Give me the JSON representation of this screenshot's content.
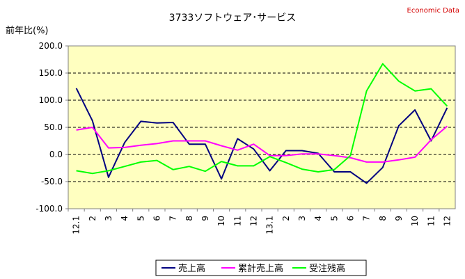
{
  "header": {
    "title": "3733ソフトウェア･サービス",
    "source": "Economic Data"
  },
  "chart_data": {
    "type": "line",
    "title": "3733ソフトウェア･サービス",
    "ylabel": "前年比(%)",
    "xlabel": "",
    "ylim": [
      -100,
      200
    ],
    "yticks": [
      "200.0",
      "150.0",
      "100.0",
      "50.0",
      "0.0",
      "-50.0",
      "-100.0"
    ],
    "grid": true,
    "legend_position": "bottom",
    "plot_background": "#ffffc0",
    "categories": [
      "12.1",
      "2",
      "3",
      "4",
      "5",
      "6",
      "7",
      "8",
      "9",
      "10",
      "11",
      "12",
      "13.1",
      "2",
      "3",
      "4",
      "5",
      "6",
      "7",
      "8",
      "9",
      "10",
      "11",
      "12"
    ],
    "series": [
      {
        "name": "売上高",
        "color": "#000080",
        "values": [
          122,
          62,
          -42,
          22,
          61,
          58,
          59,
          19,
          19,
          -45,
          29,
          10,
          -30,
          7,
          7,
          2,
          -32,
          -32,
          -53,
          -24,
          53,
          82,
          25,
          86
        ]
      },
      {
        "name": "累計売上高",
        "color": "#ff00ff",
        "values": [
          45,
          50,
          12,
          13,
          17,
          20,
          25,
          25,
          25,
          16,
          8,
          19,
          -2,
          -2,
          1,
          1,
          -2,
          -6,
          -14,
          -14,
          -10,
          -5,
          27,
          52
        ]
      },
      {
        "name": "受注残高",
        "color": "#00ff00",
        "values": [
          -30,
          -35,
          -30,
          -22,
          -14,
          -11,
          -28,
          -22,
          -31,
          -13,
          -21,
          -21,
          -4,
          -15,
          -27,
          -32,
          -28,
          -2,
          117,
          167,
          135,
          117,
          121,
          89
        ]
      }
    ]
  }
}
